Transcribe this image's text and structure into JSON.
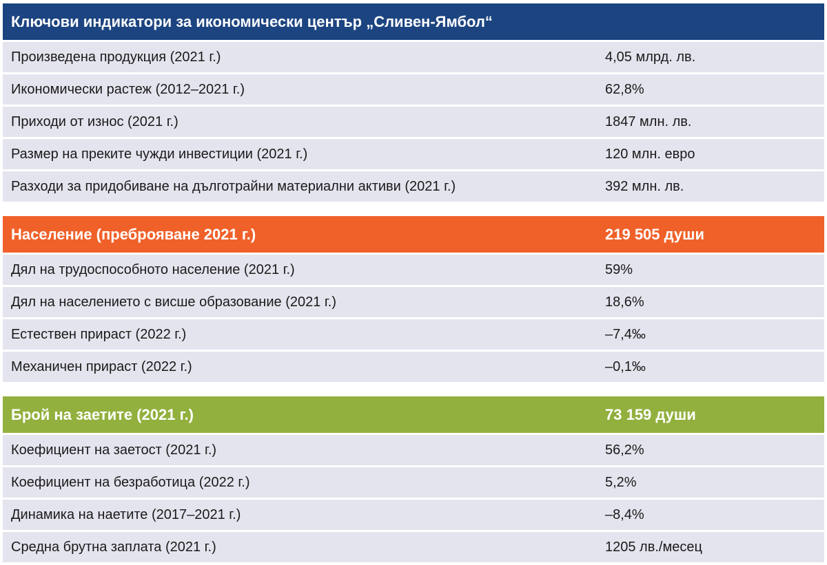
{
  "sections": [
    {
      "title": "Ключови индикатори за икономически център „Сливен-Ямбол“",
      "header_value": "",
      "rows": [
        {
          "label": "Произведена продукция (2021 г.)",
          "value": "4,05 млрд. лв."
        },
        {
          "label": "Икономически растеж (2012–2021 г.)",
          "value": "62,8%"
        },
        {
          "label": "Приходи от износ (2021 г.)",
          "value": "1847 млн. лв."
        },
        {
          "label": "Размер на преките чужди инвестиции (2021 г.)",
          "value": "120 млн. евро"
        },
        {
          "label": "Разходи за придобиване на дълготрайни материални активи (2021 г.)",
          "value": "392 млн. лв."
        }
      ]
    },
    {
      "title": "Население (преброяване 2021 г.)",
      "header_value": "219 505 души",
      "rows": [
        {
          "label": "Дял на трудоспособното население (2021 г.)",
          "value": "59%"
        },
        {
          "label": "Дял на населението с висше образование (2021 г.)",
          "value": "18,6%"
        },
        {
          "label": "Естествен прираст (2022 г.)",
          "value": "–7,4‰"
        },
        {
          "label": "Механичен прираст (2022 г.)",
          "value": "–0,1‰"
        }
      ]
    },
    {
      "title": "Брой на заетите (2021 г.)",
      "header_value": "73 159 души",
      "rows": [
        {
          "label": "Коефициент на заетост (2021 г.)",
          "value": "56,2%"
        },
        {
          "label": "Коефициент на безработица (2022 г.)",
          "value": "5,2%"
        },
        {
          "label": "Динамика на наетите (2017–2021 г.)",
          "value": "–8,4%"
        },
        {
          "label": "Средна брутна заплата (2021 г.)",
          "value": "1205 лв./месец"
        }
      ]
    }
  ],
  "colors": {
    "header_blue": "#1c4481",
    "header_orange": "#f0612a",
    "header_green": "#92b03e",
    "row_background": "#e4e4ee"
  }
}
